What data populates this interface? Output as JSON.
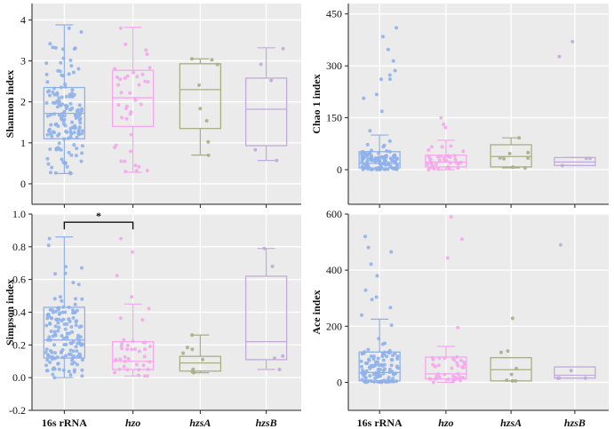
{
  "colors": {
    "panel_bg": "#ebebeb",
    "grid": "#ffffff",
    "axis": "#222222",
    "16s rRNA": "#8fb1ea",
    "hzo": "#f5a7ec",
    "hzsA": "#a7af85",
    "hzsB": "#c2aad9"
  },
  "chart_data": [
    {
      "type": "box",
      "panel": "top-left",
      "ylabel": "Shannon index",
      "ylim": [
        -0.5,
        4.4
      ],
      "yticks": [
        "0",
        "1",
        "2",
        "3",
        "4"
      ],
      "ytick_values": [
        0,
        1,
        2,
        3,
        4
      ],
      "show_x_labels": false,
      "categories": [
        "16s rRNA",
        "hzo",
        "hzsA",
        "hzsB"
      ],
      "boxes": [
        {
          "group": "16s rRNA",
          "min": 0.25,
          "q1": 1.1,
          "median": 1.72,
          "q3": 2.35,
          "max": 3.88,
          "n": 150,
          "pmin": 0.25,
          "pmax": 3.8
        },
        {
          "group": "hzo",
          "min": 0.28,
          "q1": 1.4,
          "median": 2.1,
          "q3": 2.77,
          "max": 3.82,
          "n": 40,
          "pmin": 0.3,
          "pmax": 3.8
        },
        {
          "group": "hzsA",
          "min": 0.7,
          "q1": 1.35,
          "median": 2.3,
          "q3": 2.93,
          "max": 3.05,
          "n": 8,
          "pmin": 0.7,
          "pmax": 3.05
        },
        {
          "group": "hzsB",
          "min": 0.57,
          "q1": 0.93,
          "median": 1.82,
          "q3": 2.58,
          "max": 3.32,
          "n": 5,
          "pmin": 0.57,
          "pmax": 3.3
        }
      ]
    },
    {
      "type": "box",
      "panel": "top-right",
      "ylabel": "Chao 1 index",
      "ylim": [
        -100,
        480
      ],
      "yticks": [
        "0",
        "150",
        "300",
        "450"
      ],
      "ytick_values": [
        0,
        150,
        300,
        450
      ],
      "show_x_labels": false,
      "categories": [
        "16s rRNA",
        "hzo",
        "hzsA",
        "hzsB"
      ],
      "boxes": [
        {
          "group": "16s rRNA",
          "min": 0,
          "q1": 5,
          "median": 18,
          "q3": 52,
          "max": 100,
          "n": 120,
          "pmin": 0,
          "pmax": 410
        },
        {
          "group": "hzo",
          "min": 0,
          "q1": 8,
          "median": 22,
          "q3": 42,
          "max": 85,
          "n": 40,
          "pmin": 0,
          "pmax": 150
        },
        {
          "group": "hzsA",
          "min": 5,
          "q1": 8,
          "median": 38,
          "q3": 72,
          "max": 92,
          "n": 8,
          "pmin": 5,
          "pmax": 92
        },
        {
          "group": "hzsB",
          "min": 12,
          "q1": 12,
          "median": 22,
          "q3": 35,
          "max": 35,
          "n": 5,
          "pmin": 12,
          "pmax": 370
        }
      ]
    },
    {
      "type": "box",
      "panel": "bottom-left",
      "ylabel": "Simpson index",
      "ylim": [
        -0.2,
        1.0
      ],
      "yticks": [
        "-0.2",
        "0.0",
        "0.2",
        "0.4",
        "0.6",
        "0.8",
        "1.0"
      ],
      "ytick_values": [
        -0.2,
        0,
        0.2,
        0.4,
        0.6,
        0.8,
        1.0
      ],
      "show_x_labels": true,
      "categories": [
        "16s rRNA",
        "hzo",
        "hzsA",
        "hzsB"
      ],
      "significance": {
        "label": "*",
        "from": "16s rRNA",
        "to": "hzo",
        "y": 0.95
      },
      "boxes": [
        {
          "group": "16s rRNA",
          "min": 0.0,
          "q1": 0.12,
          "median": 0.23,
          "q3": 0.43,
          "max": 0.86,
          "n": 150,
          "pmin": 0.0,
          "pmax": 0.85
        },
        {
          "group": "hzo",
          "min": 0.01,
          "q1": 0.05,
          "median": 0.1,
          "q3": 0.22,
          "max": 0.45,
          "n": 40,
          "pmin": 0.01,
          "pmax": 0.85
        },
        {
          "group": "hzsA",
          "min": 0.03,
          "q1": 0.04,
          "median": 0.09,
          "q3": 0.13,
          "max": 0.26,
          "n": 8,
          "pmin": 0.03,
          "pmax": 0.26
        },
        {
          "group": "hzsB",
          "min": 0.05,
          "q1": 0.11,
          "median": 0.22,
          "q3": 0.62,
          "max": 0.79,
          "n": 5,
          "pmin": 0.05,
          "pmax": 0.79
        }
      ]
    },
    {
      "type": "box",
      "panel": "bottom-right",
      "ylabel": "Ace index",
      "ylim": [
        -100,
        600
      ],
      "yticks": [
        "0",
        "200",
        "400",
        "600"
      ],
      "ytick_values": [
        0,
        200,
        400,
        600
      ],
      "show_x_labels": true,
      "categories": [
        "16s rRNA",
        "hzo",
        "hzsA",
        "hzsB"
      ],
      "boxes": [
        {
          "group": "16s rRNA",
          "min": 0,
          "q1": 5,
          "median": 35,
          "q3": 108,
          "max": 225,
          "n": 120,
          "pmin": 0,
          "pmax": 520
        },
        {
          "group": "hzo",
          "min": 0,
          "q1": 12,
          "median": 30,
          "q3": 90,
          "max": 128,
          "n": 40,
          "pmin": 0,
          "pmax": 590
        },
        {
          "group": "hzsA",
          "min": 5,
          "q1": 5,
          "median": 45,
          "q3": 88,
          "max": 88,
          "n": 8,
          "pmin": 5,
          "pmax": 228
        },
        {
          "group": "hzsB",
          "min": 15,
          "q1": 15,
          "median": 25,
          "q3": 55,
          "max": 55,
          "n": 5,
          "pmin": 15,
          "pmax": 490
        }
      ]
    }
  ],
  "x_labels": [
    "16s rRNA",
    "hzo",
    "hzsA",
    "hzsB"
  ]
}
